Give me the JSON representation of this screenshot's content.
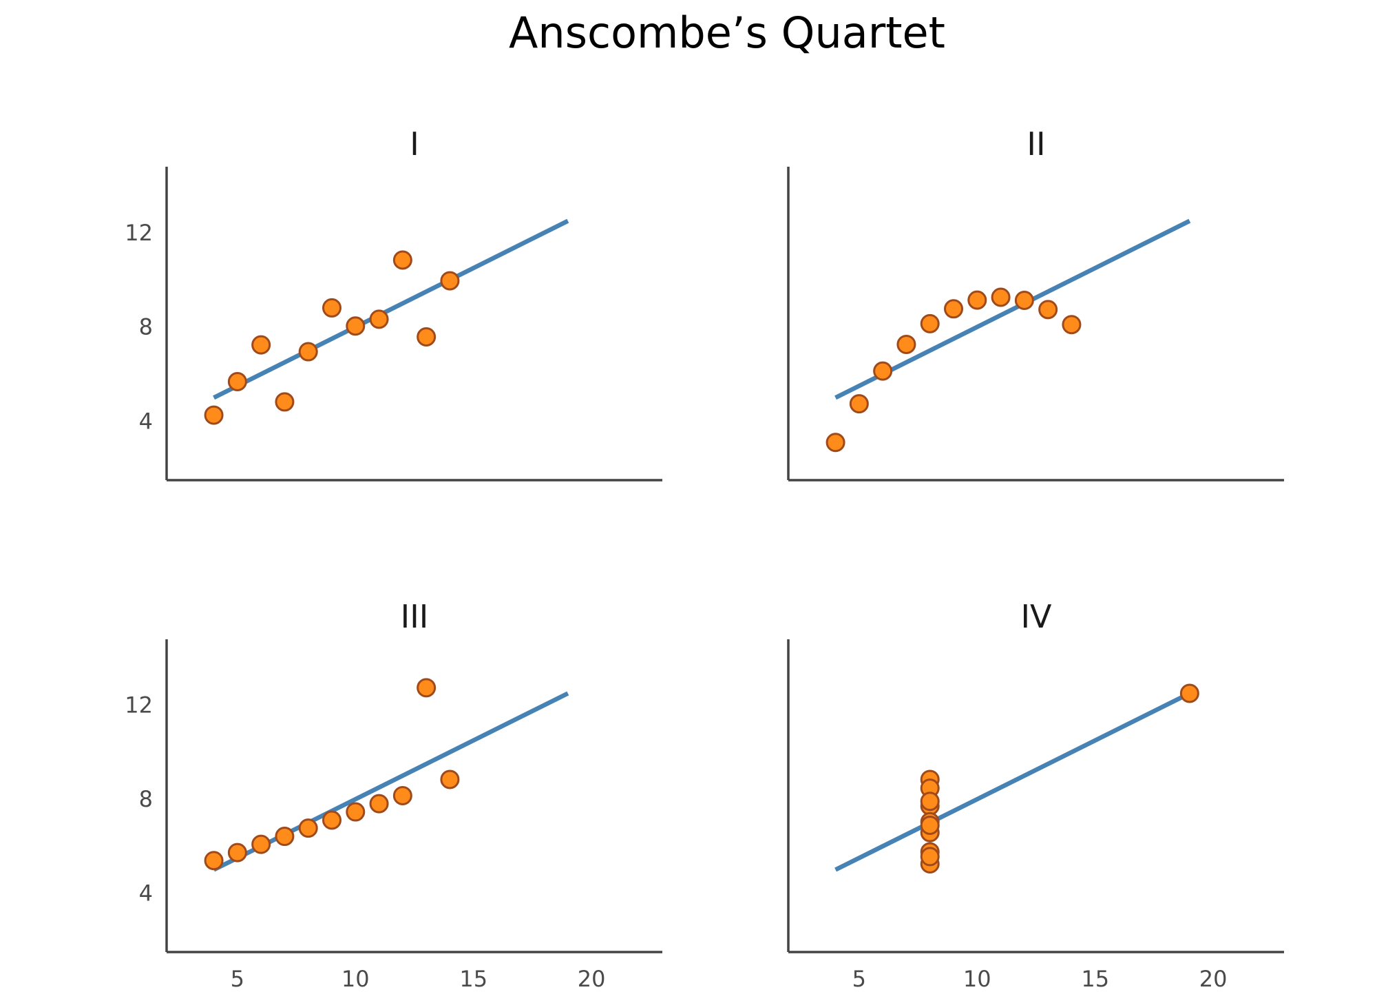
{
  "chart_data": {
    "title": "Anscombe’s Quartet",
    "colors": {
      "points": "#ff8c1a",
      "point_edge": "#a0491a",
      "line": "#4682b4",
      "axes": "#444444"
    },
    "shared_axes": {
      "xlim": [
        2,
        23
      ],
      "ylim": [
        1.5,
        14.8
      ],
      "xticks": [
        5,
        10,
        15,
        20
      ],
      "xtick_labels": [
        "5",
        "10",
        "15",
        "20"
      ],
      "yticks": [
        4,
        8,
        12
      ],
      "ytick_labels": [
        "4",
        "8",
        "12"
      ],
      "grid": false
    },
    "panels": [
      {
        "type": "scatter",
        "title": "I",
        "points": {
          "x": [
            10,
            8,
            13,
            9,
            11,
            14,
            6,
            4,
            12,
            7,
            5
          ],
          "y": [
            8.04,
            6.95,
            7.58,
            8.81,
            8.33,
            9.96,
            7.24,
            4.26,
            10.84,
            4.82,
            5.68
          ]
        },
        "fit_line": {
          "x": [
            4,
            19
          ],
          "y": [
            5.0,
            12.5
          ]
        }
      },
      {
        "type": "scatter",
        "title": "II",
        "points": {
          "x": [
            10,
            8,
            13,
            9,
            11,
            14,
            6,
            4,
            12,
            7,
            5
          ],
          "y": [
            9.14,
            8.14,
            8.74,
            8.77,
            9.26,
            8.1,
            6.13,
            3.1,
            9.13,
            7.26,
            4.74
          ]
        },
        "fit_line": {
          "x": [
            4,
            19
          ],
          "y": [
            5.0,
            12.5
          ]
        }
      },
      {
        "type": "scatter",
        "title": "III",
        "points": {
          "x": [
            10,
            8,
            13,
            9,
            11,
            14,
            6,
            4,
            12,
            7,
            5
          ],
          "y": [
            7.46,
            6.77,
            12.74,
            7.11,
            7.81,
            8.84,
            6.08,
            5.39,
            8.15,
            6.42,
            5.73
          ]
        },
        "fit_line": {
          "x": [
            4,
            19
          ],
          "y": [
            5.0,
            12.5
          ]
        }
      },
      {
        "type": "scatter",
        "title": "IV",
        "points": {
          "x": [
            8,
            8,
            8,
            8,
            8,
            8,
            8,
            19,
            8,
            8,
            8
          ],
          "y": [
            6.58,
            5.76,
            7.71,
            8.84,
            8.47,
            7.04,
            5.25,
            12.5,
            5.56,
            7.91,
            6.89
          ]
        },
        "fit_line": {
          "x": [
            4,
            19
          ],
          "y": [
            5.0,
            12.5
          ]
        }
      }
    ]
  }
}
